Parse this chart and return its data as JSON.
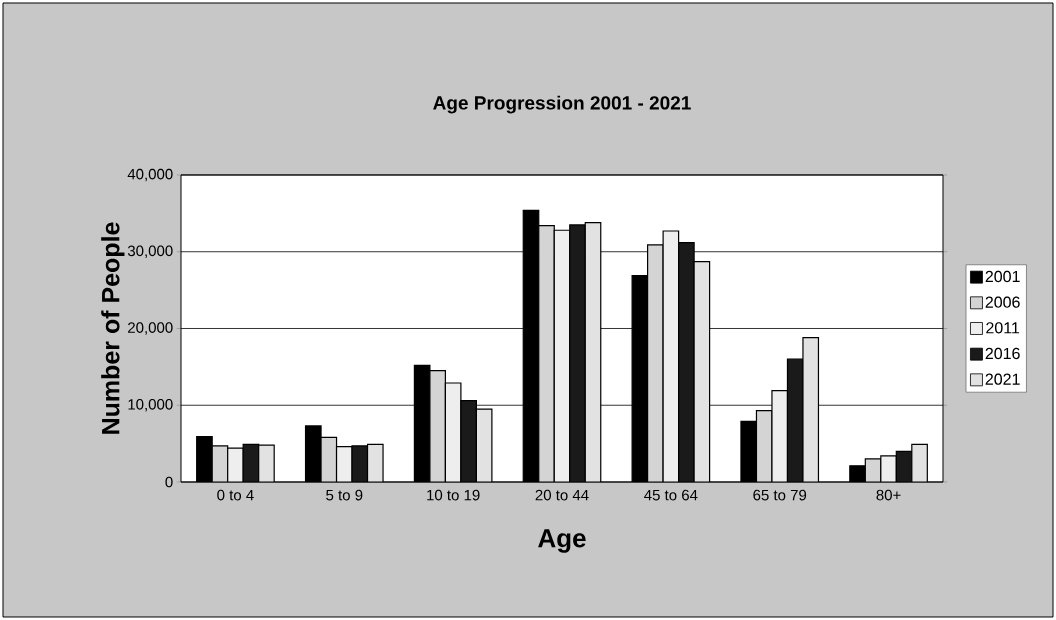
{
  "chart_data": {
    "type": "bar",
    "title": "Age Progression 2001 - 2021",
    "xlabel": "Age",
    "ylabel": "Number of People",
    "categories": [
      "0 to 4",
      "5 to 9",
      "10 to 19",
      "20 to 44",
      "45 to 64",
      "65 to 79",
      "80+"
    ],
    "series": [
      {
        "name": "2001",
        "color": "#000000",
        "values": [
          5900,
          7300,
          15200,
          35400,
          26900,
          7900,
          2100
        ]
      },
      {
        "name": "2006",
        "color": "#d4d4d4",
        "values": [
          4700,
          5800,
          14500,
          33400,
          30900,
          9300,
          3000
        ]
      },
      {
        "name": "2011",
        "color": "#eeeeee",
        "values": [
          4400,
          4600,
          12900,
          32800,
          32700,
          11900,
          3400
        ]
      },
      {
        "name": "2016",
        "color": "#1a1a1a",
        "values": [
          4900,
          4700,
          10600,
          33500,
          31200,
          16000,
          4000
        ]
      },
      {
        "name": "2021",
        "color": "#e2e2e2",
        "values": [
          4800,
          4900,
          9500,
          33800,
          28700,
          18800,
          4900
        ]
      }
    ],
    "ylim": [
      0,
      40000
    ],
    "yticks": [
      {
        "value": 0,
        "label": "0"
      },
      {
        "value": 10000,
        "label": "10,000"
      },
      {
        "value": 20000,
        "label": "20,000"
      },
      {
        "value": 30000,
        "label": "30,000"
      },
      {
        "value": 40000,
        "label": "40,000"
      }
    ],
    "grid": "y",
    "legend": "right"
  }
}
